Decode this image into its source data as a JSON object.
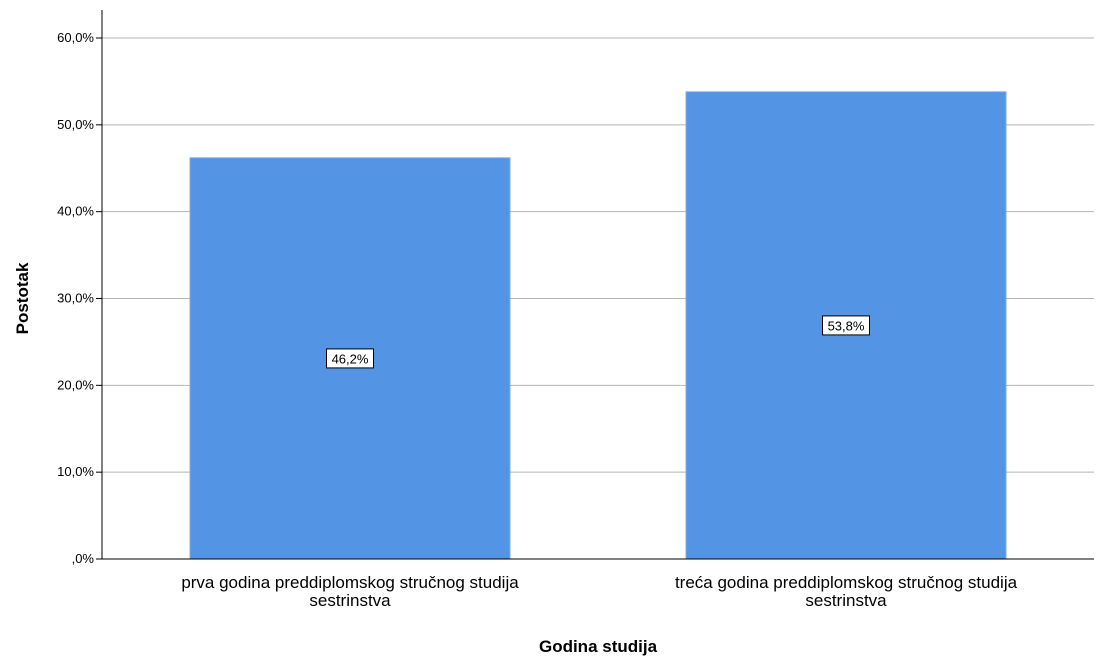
{
  "chart_data": {
    "type": "bar",
    "categories": [
      [
        "prva godina preddiplomskog stručnog studija",
        "sestrinstva"
      ],
      [
        "treća godina preddiplomskog stručnog studija",
        "sestrinstva"
      ]
    ],
    "values": [
      46.2,
      53.8
    ],
    "data_labels": [
      "46,2%",
      "53,8%"
    ],
    "xlabel": "Godina studija",
    "ylabel": "Postotak",
    "ylim": [
      0,
      60
    ],
    "yticks": [
      0,
      10,
      20,
      30,
      40,
      50,
      60
    ],
    "ytick_labels": [
      ",0%",
      "10,0%",
      "20,0%",
      "30,0%",
      "40,0%",
      "50,0%",
      "60,0%"
    ],
    "grid": true,
    "bar_color": "#5494e4"
  }
}
